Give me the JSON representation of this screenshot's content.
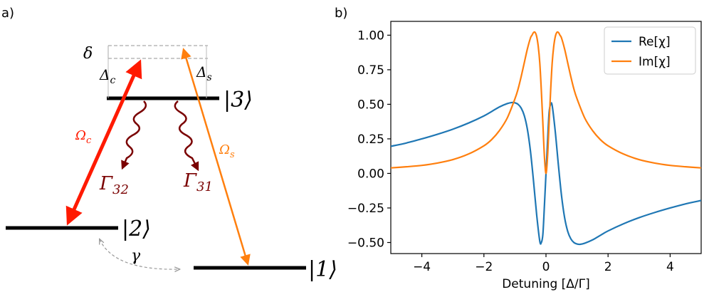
{
  "panel_a": {
    "label": "a)",
    "levels": {
      "level3": "|3⟩",
      "level2": "|2⟩",
      "level1": "|1⟩"
    },
    "symbols": {
      "delta": "δ",
      "Delta_c": "Δ",
      "Delta_c_sub": "c",
      "Delta_s": "Δ",
      "Delta_s_sub": "s",
      "Omega_c": "Ω",
      "Omega_c_sub": "c",
      "Omega_s": "Ω",
      "Omega_s_sub": "s",
      "Gamma32": "Γ",
      "Gamma32_sub": "32",
      "Gamma31": "Γ",
      "Gamma31_sub": "31",
      "gamma": "γ"
    },
    "colors": {
      "coupling": "#ff1a00",
      "signal": "#ff7f0e",
      "decay": "#7a0000",
      "dephasing": "#999999",
      "level": "#000000"
    }
  },
  "chart_data": {
    "type": "line",
    "panel_label": "b)",
    "xlabel": "Detuning [Δ/Γ]",
    "ylabel": "",
    "xlim": [
      -5,
      5
    ],
    "ylim": [
      -0.58,
      1.1
    ],
    "xticks": [
      -4,
      -2,
      0,
      2,
      4
    ],
    "yticks": [
      -0.5,
      -0.25,
      0.0,
      0.25,
      0.5,
      0.75,
      1.0
    ],
    "xtick_labels": [
      "−4",
      "−2",
      "0",
      "2",
      "4"
    ],
    "ytick_labels": [
      "−0.50",
      "−0.25",
      "0.00",
      "0.25",
      "0.50",
      "0.75",
      "1.00"
    ],
    "legend_position": "top-right",
    "grid": false,
    "series": [
      {
        "name": "Re[χ]",
        "color": "#1f77b4",
        "x": [
          -5,
          -4.5,
          -4,
          -3.5,
          -3,
          -2.5,
          -2,
          -1.75,
          -1.5,
          -1.25,
          -1.1,
          -1.0,
          -0.9,
          -0.8,
          -0.7,
          -0.6,
          -0.5,
          -0.4,
          -0.3,
          -0.2,
          -0.15,
          -0.1,
          -0.05,
          0,
          0.05,
          0.1,
          0.15,
          0.2,
          0.3,
          0.4,
          0.5,
          0.6,
          0.7,
          0.8,
          0.9,
          1.0,
          1.1,
          1.25,
          1.5,
          1.75,
          2,
          2.5,
          3,
          3.5,
          4,
          4.5,
          5
        ],
        "y": [
          0.196,
          0.22,
          0.25,
          0.283,
          0.32,
          0.364,
          0.416,
          0.448,
          0.481,
          0.505,
          0.513,
          0.511,
          0.5,
          0.473,
          0.419,
          0.32,
          0.16,
          -0.06,
          -0.3,
          -0.49,
          -0.5,
          -0.44,
          -0.23,
          0.0,
          0.23,
          0.44,
          0.5,
          0.49,
          0.3,
          0.06,
          -0.16,
          -0.32,
          -0.419,
          -0.473,
          -0.5,
          -0.511,
          -0.513,
          -0.505,
          -0.481,
          -0.448,
          -0.416,
          -0.364,
          -0.32,
          -0.283,
          -0.25,
          -0.22,
          -0.196
        ]
      },
      {
        "name": "Im[χ]",
        "color": "#ff7f0e",
        "x": [
          -5,
          -4.5,
          -4,
          -3.5,
          -3,
          -2.5,
          -2,
          -1.75,
          -1.5,
          -1.25,
          -1.0,
          -0.9,
          -0.8,
          -0.7,
          -0.6,
          -0.5,
          -0.45,
          -0.4,
          -0.35,
          -0.3,
          -0.25,
          -0.2,
          -0.15,
          -0.1,
          -0.05,
          0,
          0.05,
          0.1,
          0.15,
          0.2,
          0.25,
          0.3,
          0.35,
          0.4,
          0.45,
          0.5,
          0.6,
          0.7,
          0.8,
          0.9,
          1.0,
          1.25,
          1.5,
          1.75,
          2,
          2.5,
          3,
          3.5,
          4,
          4.5,
          5
        ],
        "y": [
          0.04,
          0.048,
          0.058,
          0.075,
          0.1,
          0.14,
          0.2,
          0.245,
          0.31,
          0.4,
          0.54,
          0.61,
          0.7,
          0.8,
          0.9,
          0.98,
          1.0,
          1.02,
          1.02,
          0.99,
          0.92,
          0.8,
          0.6,
          0.36,
          0.12,
          0.0,
          0.12,
          0.36,
          0.6,
          0.8,
          0.92,
          0.99,
          1.02,
          1.02,
          1.0,
          0.98,
          0.9,
          0.8,
          0.7,
          0.61,
          0.54,
          0.4,
          0.31,
          0.245,
          0.2,
          0.14,
          0.1,
          0.075,
          0.058,
          0.048,
          0.04
        ]
      }
    ]
  }
}
